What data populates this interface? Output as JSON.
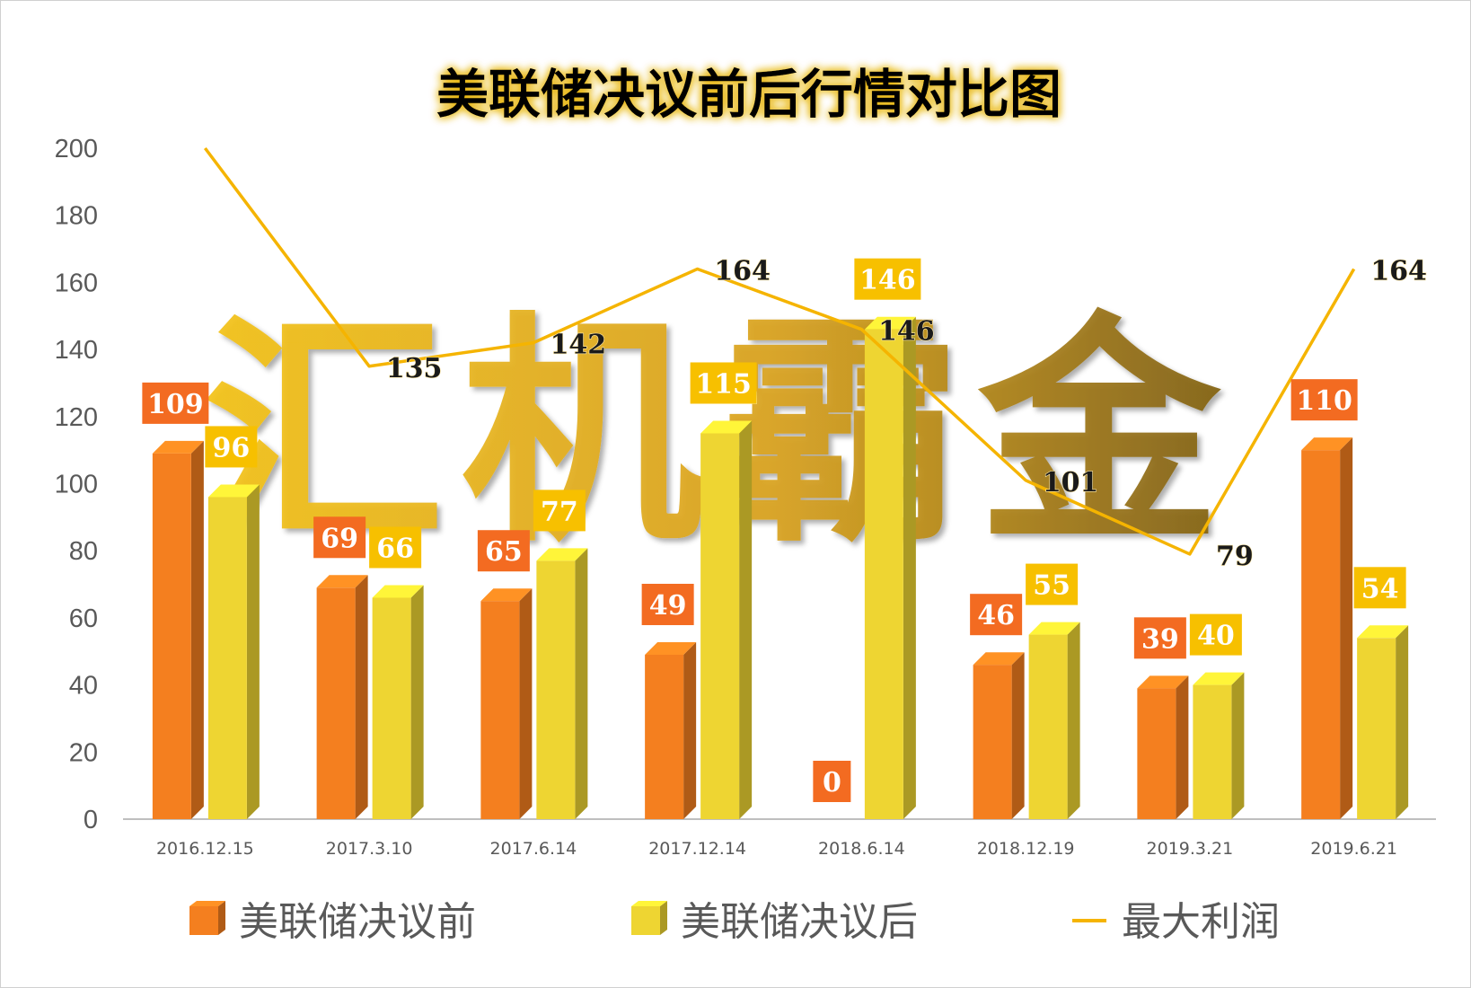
{
  "chart_data": {
    "type": "bar",
    "title": "美联储决议前后行情对比图",
    "watermark": "汇机霸金",
    "categories": [
      "2016.12.15",
      "2017.3.10",
      "2017.6.14",
      "2017.12.14",
      "2018.6.14",
      "2018.12.19",
      "2019.3.21",
      "2019.6.21"
    ],
    "series": [
      {
        "name": "美联储决议前",
        "kind": "bar",
        "color": "#f47f1f",
        "values": [
          109,
          69,
          65,
          49,
          0,
          46,
          39,
          110
        ]
      },
      {
        "name": "美联储决议后",
        "kind": "bar",
        "color": "#eed532",
        "values": [
          96,
          66,
          77,
          115,
          146,
          55,
          40,
          54
        ]
      },
      {
        "name": "最大利润",
        "kind": "line",
        "color": "#f5b400",
        "values": [
          200,
          135,
          142,
          164,
          146,
          101,
          79,
          164
        ]
      }
    ],
    "line_label_values": [
      "",
      "135",
      "142",
      "164",
      "146",
      "101",
      "79",
      "164"
    ],
    "ylim": [
      0,
      200
    ],
    "yticks": [
      0,
      20,
      40,
      60,
      80,
      100,
      120,
      140,
      160,
      180,
      200
    ],
    "grid": false,
    "legend_position": "bottom"
  }
}
